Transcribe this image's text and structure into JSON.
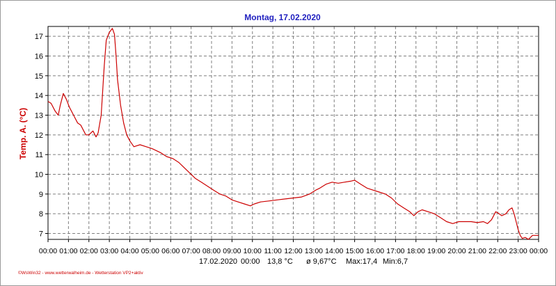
{
  "chart_data": {
    "type": "line",
    "title": "Montag, 17.02.2020",
    "ylabel": "Temp. A. (°C)",
    "xlabel": "",
    "ylim": [
      6.7,
      17.5
    ],
    "xlim": [
      0,
      24
    ],
    "yticks": [
      7,
      8,
      9,
      10,
      11,
      12,
      13,
      14,
      15,
      16,
      17
    ],
    "xtick_labels": [
      "00:00",
      "01:00",
      "02:00",
      "03:00",
      "04:00",
      "05:00",
      "06:00",
      "07:00",
      "08:00",
      "09:00",
      "10:00",
      "11:00",
      "12:00",
      "13:00",
      "14:00",
      "15:00",
      "16:00",
      "17:00",
      "18:00",
      "19:00",
      "20:00",
      "21:00",
      "22:00",
      "23:00",
      "00:00"
    ],
    "grid": true,
    "series": [
      {
        "color": "#cc0000",
        "x": [
          0,
          0.15,
          0.35,
          0.5,
          0.6,
          0.75,
          0.9,
          1.05,
          1.25,
          1.45,
          1.6,
          1.7,
          1.85,
          2.0,
          2.2,
          2.35,
          2.45,
          2.6,
          2.75,
          2.85,
          3.0,
          3.15,
          3.25,
          3.33,
          3.4,
          3.55,
          3.7,
          3.85,
          4.0,
          4.2,
          4.5,
          4.8,
          5.1,
          5.5,
          5.8,
          6.1,
          6.4,
          6.6,
          6.9,
          7.2,
          7.5,
          7.8,
          8.1,
          8.4,
          8.7,
          9.0,
          9.3,
          9.6,
          9.9,
          10.1,
          10.4,
          10.8,
          11.2,
          11.6,
          12.0,
          12.4,
          12.8,
          13.1,
          13.3,
          13.6,
          13.9,
          14.2,
          14.5,
          14.8,
          15.0,
          15.3,
          15.6,
          15.9,
          16.2,
          16.5,
          16.8,
          17.1,
          17.4,
          17.7,
          17.9,
          18.1,
          18.3,
          18.6,
          18.9,
          19.2,
          19.5,
          19.8,
          20.1,
          20.4,
          20.7,
          21.0,
          21.3,
          21.5,
          21.7,
          21.9,
          22.0,
          22.2,
          22.4,
          22.55,
          22.7,
          22.8,
          22.9,
          23.0,
          23.1,
          23.2,
          23.35,
          23.5,
          23.6,
          23.7,
          24.0
        ],
        "y": [
          13.7,
          13.6,
          13.2,
          13.0,
          13.5,
          14.1,
          13.8,
          13.4,
          13.0,
          12.6,
          12.5,
          12.3,
          12.0,
          12.0,
          12.2,
          11.9,
          12.1,
          13.0,
          15.5,
          16.8,
          17.2,
          17.4,
          17.1,
          16.0,
          14.8,
          13.5,
          12.6,
          12.0,
          11.7,
          11.4,
          11.5,
          11.4,
          11.3,
          11.1,
          10.9,
          10.8,
          10.6,
          10.4,
          10.1,
          9.8,
          9.6,
          9.4,
          9.2,
          9.0,
          8.9,
          8.7,
          8.6,
          8.5,
          8.4,
          8.5,
          8.6,
          8.65,
          8.7,
          8.75,
          8.8,
          8.85,
          9.0,
          9.2,
          9.3,
          9.5,
          9.6,
          9.55,
          9.6,
          9.65,
          9.7,
          9.5,
          9.3,
          9.2,
          9.1,
          9.0,
          8.8,
          8.5,
          8.3,
          8.1,
          7.9,
          8.1,
          8.2,
          8.1,
          8.0,
          7.8,
          7.6,
          7.5,
          7.6,
          7.6,
          7.6,
          7.55,
          7.6,
          7.5,
          7.7,
          8.1,
          8.05,
          7.9,
          8.0,
          8.2,
          8.3,
          8.0,
          7.6,
          7.2,
          6.9,
          6.75,
          6.8,
          6.7,
          6.8,
          6.9,
          6.9
        ]
      }
    ]
  },
  "footer": {
    "date": "17.02.2020",
    "time": "00:00",
    "current": "13,8 °C",
    "average": "ø 9,67°C",
    "max": "Max:17,4",
    "min": "Min:6,7"
  },
  "credit": "©WsWin32 - www.wetterwalheim.de - Wetterstation VP2+aktiv",
  "colors": {
    "title": "#1f1fbf",
    "line": "#cc0000",
    "ylabel": "#cc0000",
    "grid": "#7f7f7f",
    "credit": "#cc0000"
  }
}
